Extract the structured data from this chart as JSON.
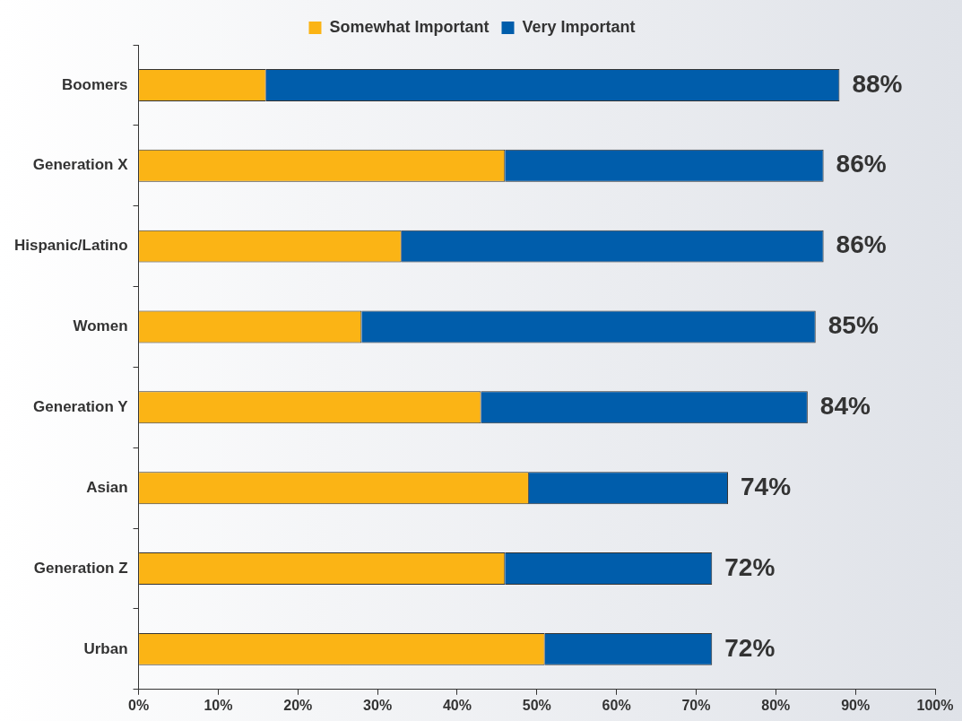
{
  "chart_data": {
    "type": "bar",
    "orientation": "horizontal",
    "stacked": true,
    "categories": [
      "Boomers",
      "Generation X",
      "Hispanic/Latino",
      "Women",
      "Generation Y",
      "Asian",
      "Generation Z",
      "Urban"
    ],
    "series": [
      {
        "name": "Somewhat Important",
        "color": "#fbb415",
        "values": [
          16,
          46,
          33,
          28,
          43,
          49,
          46,
          51
        ]
      },
      {
        "name": "Very Important",
        "color": "#005dab",
        "values": [
          72,
          40,
          53,
          57,
          41,
          25,
          26,
          21
        ]
      }
    ],
    "totals": [
      "88%",
      "86%",
      "86%",
      "85%",
      "84%",
      "74%",
      "72%",
      "72%"
    ],
    "xlim": [
      0,
      100
    ],
    "xticks": [
      {
        "value": 0,
        "label": "0%"
      },
      {
        "value": 10,
        "label": "10%"
      },
      {
        "value": 20,
        "label": "20%"
      },
      {
        "value": 30,
        "label": "30%"
      },
      {
        "value": 40,
        "label": "40%"
      },
      {
        "value": 50,
        "label": "50%"
      },
      {
        "value": 60,
        "label": "60%"
      },
      {
        "value": 70,
        "label": "70%"
      },
      {
        "value": 80,
        "label": "80%"
      },
      {
        "value": 90,
        "label": "90%"
      },
      {
        "value": 100,
        "label": "100%"
      }
    ],
    "grid": false,
    "legend": "top"
  }
}
